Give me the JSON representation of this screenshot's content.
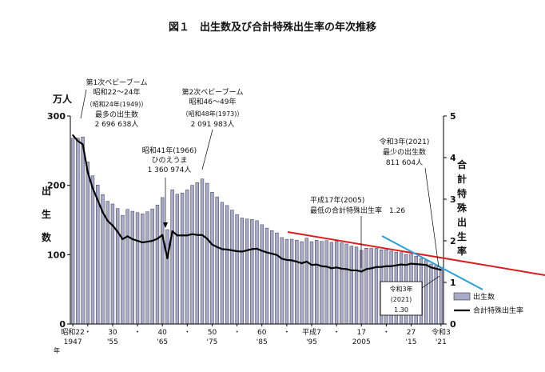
{
  "chart_data": {
    "type": "bar",
    "title": "図１　出生数及び合計特殊出生率の年次推移",
    "left_axis": {
      "unit": "万人",
      "label_chars": [
        "出",
        "生",
        "数"
      ],
      "ticks": [
        0,
        100,
        200,
        300
      ],
      "ylim": [
        0,
        300
      ]
    },
    "right_axis": {
      "label_chars": [
        "合",
        "計",
        "特",
        "殊",
        "出",
        "生",
        "率"
      ],
      "ticks": [
        0,
        1,
        2,
        3,
        4,
        5
      ],
      "ylim": [
        0,
        5
      ]
    },
    "x_axis": {
      "start_year": 1947,
      "end_year": 2021,
      "ticks": [
        {
          "year": 1947,
          "top": "昭和22",
          "bottom": "1947"
        },
        {
          "year": 1950,
          "top": "・",
          "bottom": ""
        },
        {
          "year": 1955,
          "top": "30",
          "bottom": "'55"
        },
        {
          "year": 1960,
          "top": "・",
          "bottom": ""
        },
        {
          "year": 1965,
          "top": "40",
          "bottom": "'65"
        },
        {
          "year": 1970,
          "top": "・",
          "bottom": ""
        },
        {
          "year": 1975,
          "top": "50",
          "bottom": "'75"
        },
        {
          "year": 1980,
          "top": "・",
          "bottom": ""
        },
        {
          "year": 1985,
          "top": "60",
          "bottom": "'85"
        },
        {
          "year": 1990,
          "top": "・",
          "bottom": ""
        },
        {
          "year": 1995,
          "top": "平成7",
          "bottom": "'95"
        },
        {
          "year": 2000,
          "top": "・",
          "bottom": ""
        },
        {
          "year": 2005,
          "top": "17",
          "bottom": "2005"
        },
        {
          "year": 2010,
          "top": "・",
          "bottom": ""
        },
        {
          "year": 2015,
          "top": "27",
          "bottom": "'15"
        },
        {
          "year": 2021,
          "top": "令和3",
          "bottom": "'21"
        }
      ],
      "era_char": "年"
    },
    "series": [
      {
        "name": "出生数",
        "kind": "bar",
        "axis": "left",
        "color": "#a9a9c8",
        "years": [
          1947,
          1948,
          1949,
          1950,
          1951,
          1952,
          1953,
          1954,
          1955,
          1956,
          1957,
          1958,
          1959,
          1960,
          1961,
          1962,
          1963,
          1964,
          1965,
          1966,
          1967,
          1968,
          1969,
          1970,
          1971,
          1972,
          1973,
          1974,
          1975,
          1976,
          1977,
          1978,
          1979,
          1980,
          1981,
          1982,
          1983,
          1984,
          1985,
          1986,
          1987,
          1988,
          1989,
          1990,
          1991,
          1992,
          1993,
          1994,
          1995,
          1996,
          1997,
          1998,
          1999,
          2000,
          2001,
          2002,
          2003,
          2004,
          2005,
          2006,
          2007,
          2008,
          2009,
          2010,
          2011,
          2012,
          2013,
          2014,
          2015,
          2016,
          2017,
          2018,
          2019,
          2020,
          2021
        ],
        "values": [
          267.9,
          268.2,
          269.7,
          233.8,
          213.8,
          200.5,
          186.8,
          177.0,
          173.1,
          166.5,
          156.7,
          165.3,
          162.6,
          160.6,
          158.9,
          161.9,
          166.0,
          171.7,
          182.4,
          136.1,
          193.6,
          187.2,
          189.0,
          193.4,
          200.1,
          203.9,
          209.2,
          203.0,
          190.1,
          183.3,
          175.5,
          170.9,
          164.3,
          157.7,
          152.9,
          151.5,
          150.9,
          149.0,
          143.2,
          138.3,
          134.7,
          131.4,
          124.7,
          122.2,
          122.3,
          120.9,
          118.8,
          123.8,
          118.7,
          120.7,
          119.2,
          120.3,
          117.8,
          119.1,
          117.1,
          115.4,
          112.4,
          111.1,
          106.3,
          109.3,
          109.0,
          109.1,
          107.0,
          107.1,
          105.1,
          103.7,
          103.0,
          100.4,
          100.6,
          97.7,
          94.6,
          91.8,
          86.5,
          84.1,
          81.2
        ]
      },
      {
        "name": "合計特殊出生率",
        "kind": "line",
        "axis": "right",
        "color": "#000000",
        "years": [
          1947,
          1948,
          1949,
          1950,
          1951,
          1952,
          1953,
          1954,
          1955,
          1956,
          1957,
          1958,
          1959,
          1960,
          1961,
          1962,
          1963,
          1964,
          1965,
          1966,
          1967,
          1968,
          1969,
          1970,
          1971,
          1972,
          1973,
          1974,
          1975,
          1976,
          1977,
          1978,
          1979,
          1980,
          1981,
          1982,
          1983,
          1984,
          1985,
          1986,
          1987,
          1988,
          1989,
          1990,
          1991,
          1992,
          1993,
          1994,
          1995,
          1996,
          1997,
          1998,
          1999,
          2000,
          2001,
          2002,
          2003,
          2004,
          2005,
          2006,
          2007,
          2008,
          2009,
          2010,
          2011,
          2012,
          2013,
          2014,
          2015,
          2016,
          2017,
          2018,
          2019,
          2020,
          2021
        ],
        "values": [
          4.54,
          4.4,
          4.32,
          3.65,
          3.26,
          2.98,
          2.69,
          2.48,
          2.37,
          2.22,
          2.04,
          2.11,
          2.04,
          2.0,
          1.96,
          1.98,
          2.0,
          2.05,
          2.14,
          1.58,
          2.23,
          2.13,
          2.13,
          2.13,
          2.16,
          2.14,
          2.14,
          2.05,
          1.91,
          1.85,
          1.8,
          1.79,
          1.77,
          1.75,
          1.74,
          1.77,
          1.8,
          1.81,
          1.76,
          1.72,
          1.69,
          1.66,
          1.57,
          1.54,
          1.53,
          1.5,
          1.46,
          1.5,
          1.42,
          1.43,
          1.39,
          1.38,
          1.34,
          1.36,
          1.33,
          1.32,
          1.29,
          1.29,
          1.26,
          1.32,
          1.34,
          1.37,
          1.37,
          1.39,
          1.39,
          1.41,
          1.43,
          1.42,
          1.45,
          1.44,
          1.43,
          1.42,
          1.36,
          1.33,
          1.3
        ]
      }
    ],
    "annotations": [
      {
        "id": "ann-boom1",
        "lines": [
          "第1次ベビーブーム",
          "昭和22～24年",
          "（昭和24年(1949)）",
          "最多の出生数",
          "2 696 638人"
        ]
      },
      {
        "id": "ann-hinoeuma",
        "lines": [
          "昭和41年(1966)",
          "ひのえうま",
          "1 360 974人"
        ]
      },
      {
        "id": "ann-boom2",
        "lines": [
          "第2次ベビーブーム",
          "昭和46～49年",
          "（昭和48年(1973)）",
          "2 091 983人"
        ]
      },
      {
        "id": "ann-lowest-rate",
        "lines": [
          "平成17年(2005)",
          "最低の合計特殊出生率　1.26"
        ]
      },
      {
        "id": "ann-fewest-births",
        "lines": [
          "令和3年(2021)",
          "最少の出生数",
          "811 604人"
        ]
      },
      {
        "id": "ann-r3-rate",
        "lines": [
          "令和3年",
          "(2021)",
          "1.30"
        ]
      }
    ],
    "legend": {
      "placement": "right",
      "items": [
        {
          "label": "出生数",
          "kind": "bar"
        },
        {
          "label": "合計特殊出生率",
          "kind": "line"
        }
      ]
    },
    "overlay_lines": [
      {
        "name": "red-trend-line",
        "color": "#d62020"
      },
      {
        "name": "blue-trend-line",
        "color": "#2a9fd6"
      }
    ]
  }
}
